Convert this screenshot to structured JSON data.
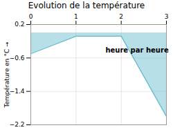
{
  "chart_data": {
    "type": "area",
    "title": "Evolution de la température",
    "ylabel": "Température en °C",
    "x": [
      0,
      1,
      2,
      3
    ],
    "values": [
      -0.5,
      -0.08,
      -0.08,
      -2.0
    ],
    "color": "#60b8cc",
    "xlim": [
      0,
      3
    ],
    "xticks": [
      0,
      1,
      2,
      3
    ],
    "ylim": [
      -2.2,
      0.2
    ],
    "yticks": [
      0.2,
      -0.6,
      -1.4,
      -2.2
    ],
    "grid": true,
    "annotations": [
      {
        "text": "heure par heure",
        "x": 2.35,
        "y": -0.42
      }
    ]
  }
}
